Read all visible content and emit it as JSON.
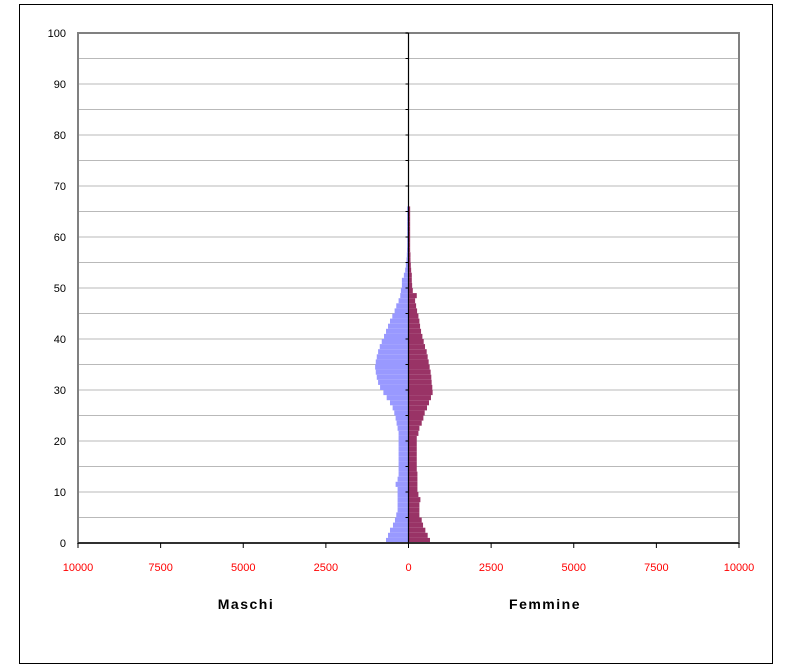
{
  "chart_data": {
    "type": "bar",
    "orientation": "horizontal-pyramid",
    "xlim": [
      -10000,
      10000
    ],
    "ylim": [
      0,
      100
    ],
    "y_ticks": [
      "0",
      "10",
      "20",
      "30",
      "40",
      "50",
      "60",
      "70",
      "80",
      "90",
      "100"
    ],
    "x_ticks": [
      "10000",
      "7500",
      "5000",
      "2500",
      "0",
      "2500",
      "5000",
      "7500",
      "10000"
    ],
    "grid": true,
    "colors": {
      "maschi": "#9999ff",
      "femmine": "#993366",
      "xtick_text": "#ff0000"
    },
    "ages": [
      0,
      1,
      2,
      3,
      4,
      5,
      6,
      7,
      8,
      9,
      10,
      11,
      12,
      13,
      14,
      15,
      16,
      17,
      18,
      19,
      20,
      21,
      22,
      23,
      24,
      25,
      26,
      27,
      28,
      29,
      30,
      31,
      32,
      33,
      34,
      35,
      36,
      37,
      38,
      39,
      40,
      41,
      42,
      43,
      44,
      45,
      46,
      47,
      48,
      49,
      50,
      51,
      52,
      53,
      54,
      55,
      56,
      57,
      58,
      59,
      60,
      61,
      62,
      63,
      64,
      65
    ],
    "series": [
      {
        "name": "Maschi",
        "values": [
          680,
          620,
          560,
          470,
          410,
          370,
          330,
          330,
          330,
          330,
          330,
          390,
          330,
          300,
          300,
          300,
          300,
          300,
          300,
          300,
          300,
          300,
          330,
          360,
          390,
          430,
          480,
          560,
          660,
          760,
          860,
          920,
          960,
          990,
          1010,
          990,
          960,
          920,
          870,
          810,
          740,
          680,
          620,
          560,
          490,
          420,
          370,
          300,
          250,
          230,
          200,
          200,
          140,
          100,
          80,
          60,
          50,
          45,
          40,
          40,
          40,
          40,
          40,
          40,
          40,
          40
        ]
      },
      {
        "name": "Femmine",
        "values": [
          650,
          580,
          510,
          440,
          400,
          330,
          330,
          330,
          360,
          300,
          270,
          270,
          270,
          270,
          250,
          250,
          250,
          250,
          250,
          250,
          250,
          300,
          330,
          400,
          450,
          490,
          560,
          620,
          680,
          730,
          720,
          700,
          690,
          670,
          640,
          610,
          580,
          550,
          500,
          460,
          420,
          380,
          350,
          330,
          300,
          260,
          230,
          200,
          250,
          130,
          110,
          100,
          100,
          80,
          70,
          60,
          60,
          50,
          50,
          50,
          50,
          50,
          50,
          50,
          50,
          50
        ]
      }
    ]
  },
  "labels": {
    "left": "Maschi",
    "right": "Femmine"
  }
}
